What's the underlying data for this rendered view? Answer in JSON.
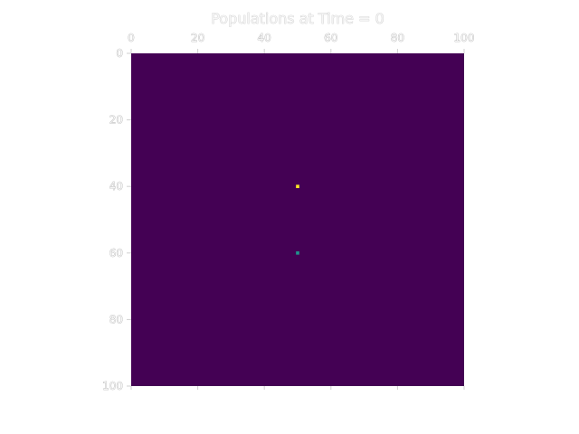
{
  "chart_data": {
    "type": "heatmap",
    "title": "Populations at Time = 0",
    "xlabel": "",
    "ylabel": "",
    "grid": false,
    "x_ticks": [
      0,
      20,
      40,
      60,
      80,
      100
    ],
    "y_ticks": [
      0,
      20,
      40,
      60,
      80,
      100
    ],
    "xlim": [
      0,
      100
    ],
    "ylim": [
      0,
      100
    ],
    "x_axis_position": "top",
    "y_axis_inverted": true,
    "colormap": "viridis",
    "background_value": 0,
    "background_color": "#440154",
    "cells": [
      {
        "x": 50,
        "y": 40,
        "value": 1.0,
        "color": "#fde725"
      },
      {
        "x": 50,
        "y": 60,
        "value": 0.5,
        "color": "#21918c"
      }
    ]
  }
}
